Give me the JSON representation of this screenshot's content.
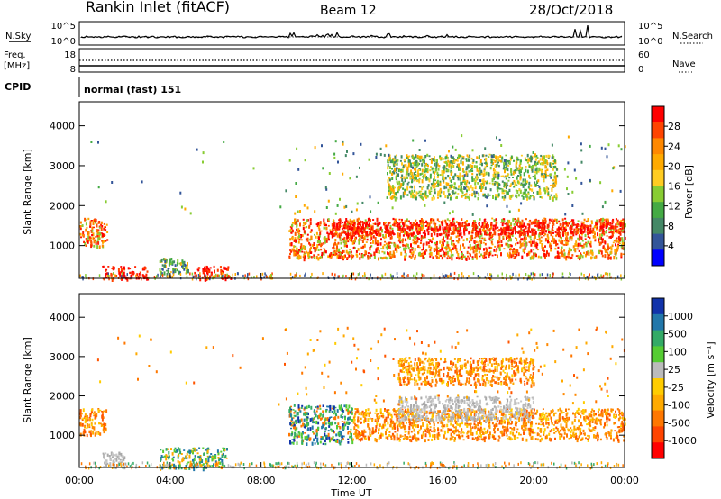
{
  "header": {
    "station": "Rankin Inlet (fitACF)",
    "beam": "Beam 12",
    "date": "28/Oct/2018"
  },
  "strips": {
    "nsky_label": "N.Sky",
    "nsky_ticks": [
      "10^5",
      "10^0"
    ],
    "nsearch_label": "N.Search",
    "nsearch_ticks": [
      "10^5",
      "10^0"
    ],
    "freq_label_1": "Freq.",
    "freq_label_2": "[MHz]",
    "freq_ticks": [
      "18",
      "8"
    ],
    "nave_label": "Nave",
    "nave_ticks": [
      "60",
      "0"
    ],
    "cpid_label": "CPID",
    "cpid_text": "normal (fast) 151"
  },
  "axes": {
    "ylabel": "Slant Range [km]",
    "yticks": [
      "4000",
      "3000",
      "2000",
      "1000"
    ],
    "xticks": [
      "00:00",
      "04:00",
      "08:00",
      "12:00",
      "16:00",
      "20:00",
      "00:00"
    ],
    "xlabel": "Time UT"
  },
  "colorbars": {
    "power": {
      "label": "Power [dB]",
      "ticks": [
        "28",
        "24",
        "20",
        "16",
        "12",
        "8",
        "4"
      ],
      "colors": [
        "#ff0000",
        "#ff4400",
        "#ff8800",
        "#ffaa00",
        "#ffcc22",
        "#88cc33",
        "#44aa44",
        "#448866",
        "#335599",
        "#0000ff"
      ]
    },
    "velocity": {
      "label": "Velocity [m s⁻¹]",
      "ticks": [
        "1000",
        "500",
        "100",
        "25",
        "-25",
        "-100",
        "-500",
        "-1000"
      ],
      "colors": [
        "#1133aa",
        "#2277aa",
        "#33aa66",
        "#55cc33",
        "#bbbbbb",
        "#ffcc00",
        "#ffaa00",
        "#ff7700",
        "#ff4400",
        "#ff0000"
      ]
    }
  },
  "chart_data": [
    {
      "type": "heatmap",
      "title": "Power [dB]",
      "xlabel": "Time UT",
      "ylabel": "Slant Range [km]",
      "xlim": [
        0,
        24
      ],
      "ylim": [
        180,
        4600
      ],
      "colorbar_range": [
        0,
        30
      ],
      "colorbar_ticks": [
        4,
        8,
        12,
        16,
        20,
        24,
        28
      ],
      "regions": [
        {
          "t": [
            0.0,
            1.2
          ],
          "r": [
            1000,
            1700
          ],
          "level": "red-orange"
        },
        {
          "t": [
            1.0,
            3.0
          ],
          "r": [
            180,
            500
          ],
          "level": "red"
        },
        {
          "t": [
            3.5,
            4.8
          ],
          "r": [
            300,
            700
          ],
          "level": "green-blue"
        },
        {
          "t": [
            5.0,
            6.7
          ],
          "r": [
            180,
            500
          ],
          "level": "red"
        },
        {
          "t": [
            9.2,
            24.0
          ],
          "r": [
            700,
            1700
          ],
          "level": "red-orange"
        },
        {
          "t": [
            11.0,
            24.0
          ],
          "r": [
            1300,
            1600
          ],
          "level": "red"
        },
        {
          "t": [
            13.5,
            21.0
          ],
          "r": [
            2200,
            3300
          ],
          "level": "green-yellow"
        }
      ]
    },
    {
      "type": "heatmap",
      "title": "Velocity [m s⁻¹]",
      "xlabel": "Time UT",
      "ylabel": "Slant Range [km]",
      "xlim": [
        0,
        24
      ],
      "ylim": [
        180,
        4600
      ],
      "colorbar_range": [
        -1300,
        1300
      ],
      "colorbar_ticks": [
        1000,
        500,
        100,
        25,
        -25,
        -100,
        -500,
        -1000
      ],
      "regions": [
        {
          "t": [
            0.0,
            1.2
          ],
          "r": [
            1000,
            1700
          ],
          "level": "-500"
        },
        {
          "t": [
            1.0,
            2.0
          ],
          "r": [
            180,
            600
          ],
          "level": "ground"
        },
        {
          "t": [
            3.5,
            6.5
          ],
          "r": [
            180,
            700
          ],
          "level": "100"
        },
        {
          "t": [
            9.2,
            12.0
          ],
          "r": [
            800,
            1800
          ],
          "level": "500"
        },
        {
          "t": [
            12.0,
            24.0
          ],
          "r": [
            900,
            1700
          ],
          "level": "-500"
        },
        {
          "t": [
            14.0,
            20.0
          ],
          "r": [
            1400,
            2000
          ],
          "level": "ground"
        },
        {
          "t": [
            14.0,
            20.0
          ],
          "r": [
            2300,
            3000
          ],
          "level": "-500"
        }
      ]
    }
  ]
}
